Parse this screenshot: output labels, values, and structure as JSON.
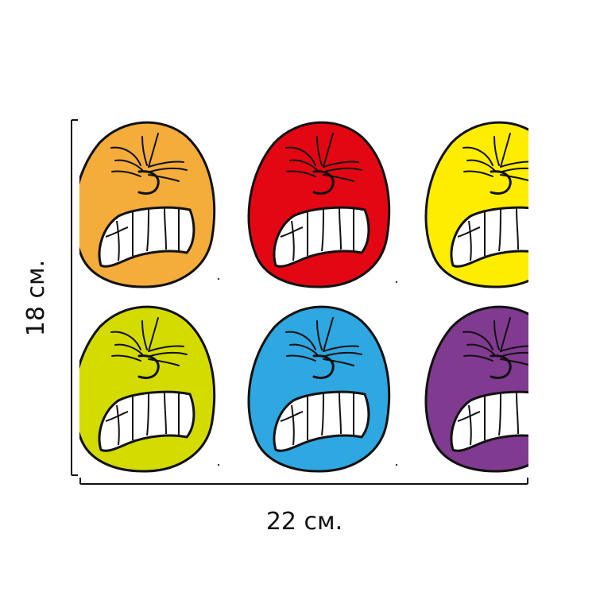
{
  "dimensions": {
    "width_label": "22 см.",
    "height_label": "18 см."
  },
  "stickers": [
    {
      "name": "orange-face",
      "color": "#F4AC3B"
    },
    {
      "name": "red-face",
      "color": "#E30613"
    },
    {
      "name": "yellow-face",
      "color": "#FFED00"
    },
    {
      "name": "lime-face",
      "color": "#D4DB00"
    },
    {
      "name": "blue-face",
      "color": "#2FA7E0"
    },
    {
      "name": "purple-face",
      "color": "#803A8F"
    }
  ],
  "colors": {
    "outline": "#111111",
    "teeth": "#ffffff",
    "background": "#ffffff"
  }
}
